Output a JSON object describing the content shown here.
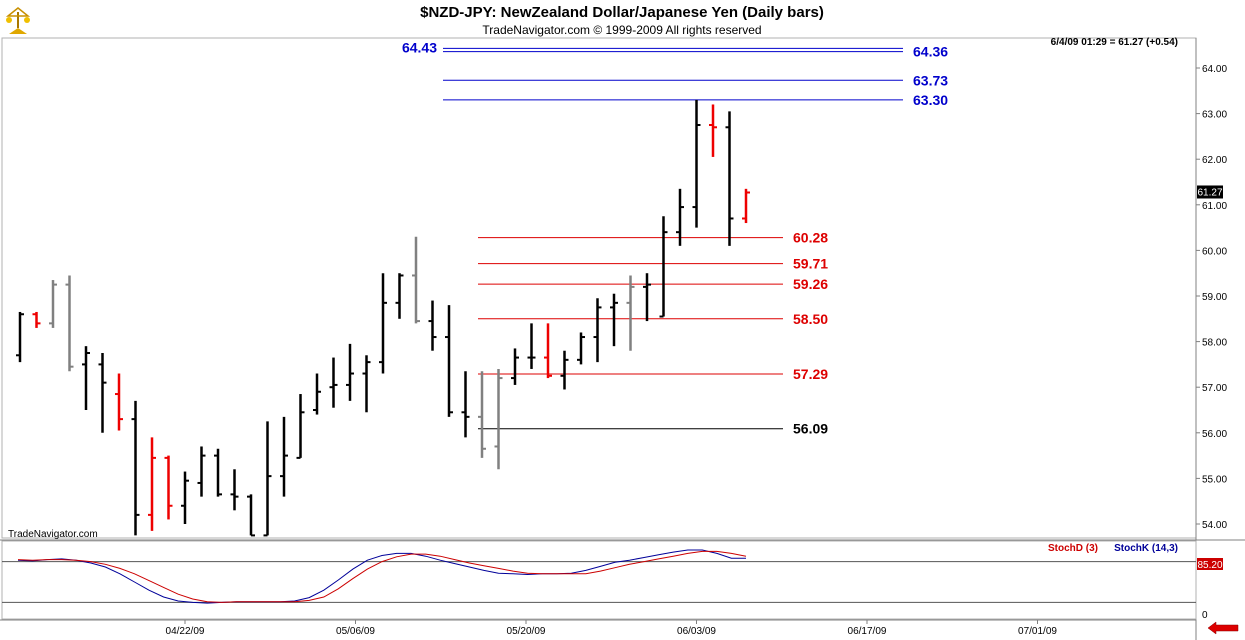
{
  "chart_data": {
    "type": "bar",
    "style": "ohlc",
    "title": "$NZD-JPY:  NewZealand Dollar/Japanese Yen  (Daily bars)",
    "subtitle": "TradeNavigator.com © 1999-2009 All rights reserved",
    "watermark": "TradeNavigator.com",
    "quote_readout": "6/4/09 01:29 = 61.27 (+0.54)",
    "last_price_label": "61.27",
    "ylim": [
      53.7,
      64.5
    ],
    "y_ticks": [
      "54.00",
      "55.00",
      "56.00",
      "57.00",
      "58.00",
      "59.00",
      "60.00",
      "61.00",
      "62.00",
      "63.00",
      "64.00"
    ],
    "x_ticks": [
      "04/22/09",
      "05/06/09",
      "05/20/09",
      "06/03/09",
      "06/17/09",
      "07/01/09"
    ],
    "colors": {
      "up": "#000000",
      "down": "#ee0000",
      "neutral": "#808080",
      "resistance": "#0000cc",
      "support": "#dd0000",
      "base": "#000000"
    },
    "bars": [
      {
        "o": 57.7,
        "h": 58.65,
        "l": 57.55,
        "c": 58.6,
        "color": "black"
      },
      {
        "o": 58.6,
        "h": 58.65,
        "l": 58.3,
        "c": 58.4,
        "color": "red"
      },
      {
        "o": 58.4,
        "h": 59.35,
        "l": 58.3,
        "c": 59.25,
        "color": "gray"
      },
      {
        "o": 59.25,
        "h": 59.45,
        "l": 57.35,
        "c": 57.45,
        "color": "gray"
      },
      {
        "o": 57.5,
        "h": 57.9,
        "l": 56.5,
        "c": 57.75,
        "color": "black"
      },
      {
        "o": 57.5,
        "h": 57.75,
        "l": 56.0,
        "c": 57.1,
        "color": "black"
      },
      {
        "o": 56.85,
        "h": 57.3,
        "l": 56.05,
        "c": 56.3,
        "color": "red"
      },
      {
        "o": 56.3,
        "h": 56.7,
        "l": 53.75,
        "c": 54.2,
        "color": "black"
      },
      {
        "o": 54.2,
        "h": 55.9,
        "l": 53.85,
        "c": 55.45,
        "color": "red"
      },
      {
        "o": 55.45,
        "h": 55.5,
        "l": 54.1,
        "c": 54.4,
        "color": "red"
      },
      {
        "o": 54.4,
        "h": 55.15,
        "l": 54.0,
        "c": 54.95,
        "color": "black"
      },
      {
        "o": 54.9,
        "h": 55.7,
        "l": 54.6,
        "c": 55.5,
        "color": "black"
      },
      {
        "o": 55.5,
        "h": 55.65,
        "l": 54.6,
        "c": 54.65,
        "color": "black"
      },
      {
        "o": 54.65,
        "h": 55.2,
        "l": 54.3,
        "c": 54.6,
        "color": "black"
      },
      {
        "o": 54.6,
        "h": 54.65,
        "l": 53.75,
        "c": 53.75,
        "color": "black"
      },
      {
        "o": 53.75,
        "h": 56.25,
        "l": 53.75,
        "c": 55.05,
        "color": "black"
      },
      {
        "o": 55.05,
        "h": 56.35,
        "l": 54.6,
        "c": 55.5,
        "color": "black"
      },
      {
        "o": 55.45,
        "h": 56.85,
        "l": 55.45,
        "c": 56.45,
        "color": "black"
      },
      {
        "o": 56.5,
        "h": 57.3,
        "l": 56.4,
        "c": 56.9,
        "color": "black"
      },
      {
        "o": 57.0,
        "h": 57.65,
        "l": 56.55,
        "c": 57.05,
        "color": "black"
      },
      {
        "o": 57.05,
        "h": 57.95,
        "l": 56.7,
        "c": 57.3,
        "color": "black"
      },
      {
        "o": 57.3,
        "h": 57.7,
        "l": 56.45,
        "c": 57.55,
        "color": "black"
      },
      {
        "o": 57.55,
        "h": 59.5,
        "l": 57.3,
        "c": 58.85,
        "color": "black"
      },
      {
        "o": 58.85,
        "h": 59.5,
        "l": 58.5,
        "c": 59.45,
        "color": "black"
      },
      {
        "o": 59.45,
        "h": 60.3,
        "l": 58.4,
        "c": 58.45,
        "color": "gray"
      },
      {
        "o": 58.45,
        "h": 58.9,
        "l": 57.8,
        "c": 58.1,
        "color": "black"
      },
      {
        "o": 58.1,
        "h": 58.8,
        "l": 56.35,
        "c": 56.45,
        "color": "black"
      },
      {
        "o": 56.45,
        "h": 57.35,
        "l": 55.9,
        "c": 56.35,
        "color": "black"
      },
      {
        "o": 56.35,
        "h": 57.35,
        "l": 55.45,
        "c": 55.65,
        "color": "gray"
      },
      {
        "o": 55.7,
        "h": 57.4,
        "l": 55.2,
        "c": 57.2,
        "color": "gray"
      },
      {
        "o": 57.2,
        "h": 57.85,
        "l": 57.05,
        "c": 57.65,
        "color": "black"
      },
      {
        "o": 57.65,
        "h": 58.4,
        "l": 57.4,
        "c": 57.65,
        "color": "black"
      },
      {
        "o": 57.65,
        "h": 58.4,
        "l": 57.2,
        "c": 57.25,
        "color": "red"
      },
      {
        "o": 57.25,
        "h": 57.8,
        "l": 56.95,
        "c": 57.6,
        "color": "black"
      },
      {
        "o": 57.6,
        "h": 58.2,
        "l": 57.5,
        "c": 58.1,
        "color": "black"
      },
      {
        "o": 58.1,
        "h": 58.95,
        "l": 57.55,
        "c": 58.75,
        "color": "black"
      },
      {
        "o": 58.75,
        "h": 59.05,
        "l": 57.9,
        "c": 58.85,
        "color": "black"
      },
      {
        "o": 58.85,
        "h": 59.45,
        "l": 57.8,
        "c": 59.2,
        "color": "gray"
      },
      {
        "o": 59.2,
        "h": 59.5,
        "l": 58.45,
        "c": 59.25,
        "color": "black"
      },
      {
        "o": 58.55,
        "h": 60.75,
        "l": 58.55,
        "c": 60.4,
        "color": "black"
      },
      {
        "o": 60.4,
        "h": 61.35,
        "l": 60.1,
        "c": 60.95,
        "color": "black"
      },
      {
        "o": 60.95,
        "h": 63.3,
        "l": 60.5,
        "c": 62.75,
        "color": "black"
      },
      {
        "o": 62.75,
        "h": 63.2,
        "l": 62.05,
        "c": 62.7,
        "color": "red"
      },
      {
        "o": 62.7,
        "h": 63.05,
        "l": 60.1,
        "c": 60.7,
        "color": "black"
      },
      {
        "o": 60.7,
        "h": 61.35,
        "l": 60.6,
        "c": 61.27,
        "color": "red"
      }
    ],
    "levels": [
      {
        "label": "64.43",
        "value": 64.43,
        "group": "resistance",
        "label_side": "left"
      },
      {
        "label": "64.36",
        "value": 64.36,
        "group": "resistance",
        "label_side": "right"
      },
      {
        "label": "63.73",
        "value": 63.73,
        "group": "resistance",
        "label_side": "right"
      },
      {
        "label": "63.30",
        "value": 63.3,
        "group": "resistance",
        "label_side": "right"
      },
      {
        "label": "60.28",
        "value": 60.28,
        "group": "support",
        "label_side": "right"
      },
      {
        "label": "59.71",
        "value": 59.71,
        "group": "support",
        "label_side": "right"
      },
      {
        "label": "59.26",
        "value": 59.26,
        "group": "support",
        "label_side": "right"
      },
      {
        "label": "58.50",
        "value": 58.5,
        "group": "support",
        "label_side": "right"
      },
      {
        "label": "57.29",
        "value": 57.29,
        "group": "support",
        "label_side": "right"
      },
      {
        "label": "56.09",
        "value": 56.09,
        "group": "base",
        "label_side": "right"
      }
    ],
    "oscillator": {
      "ylim": [
        0,
        100
      ],
      "y_ticks": [
        "0"
      ],
      "reference_lines": [
        20,
        80
      ],
      "last_label": "85.20",
      "legend": [
        {
          "text": "StochD (3)",
          "color": "#cc0000"
        },
        {
          "text": "StochK (14,3)",
          "color": "#000099"
        }
      ],
      "stoch_d": [
        83,
        82,
        83,
        83,
        82,
        80,
        76,
        70,
        62,
        52,
        42,
        32,
        25,
        21,
        20,
        21,
        21,
        21,
        21,
        21,
        23,
        28,
        40,
        55,
        69,
        80,
        87,
        91,
        91,
        88,
        83,
        78,
        74,
        70,
        66,
        63,
        62,
        62,
        62,
        62,
        66,
        71,
        76,
        80,
        84,
        88,
        92,
        95,
        95,
        92,
        88
      ],
      "stoch_k": [
        82,
        81,
        83,
        84,
        82,
        78,
        72,
        62,
        50,
        38,
        28,
        22,
        20,
        19,
        20,
        21,
        21,
        21,
        21,
        22,
        27,
        38,
        53,
        69,
        82,
        89,
        92,
        92,
        88,
        82,
        77,
        72,
        67,
        63,
        62,
        61,
        62,
        62,
        63,
        67,
        73,
        79,
        82,
        86,
        90,
        94,
        97,
        97,
        92,
        85,
        85
      ]
    }
  }
}
